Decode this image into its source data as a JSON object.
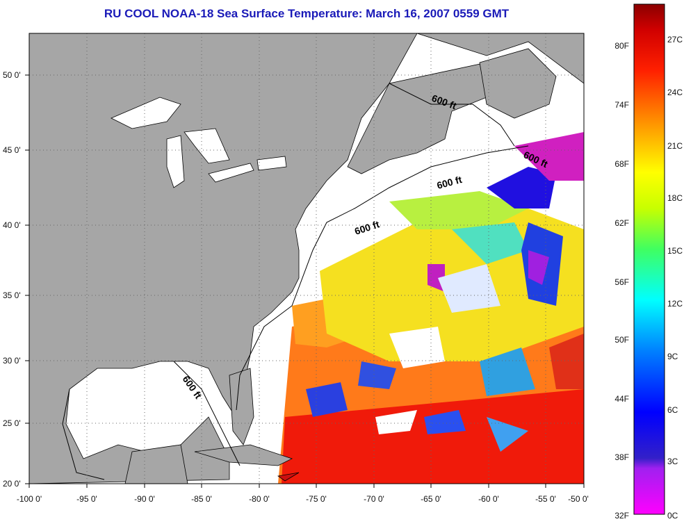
{
  "title": "RU COOL  NOAA-18  Sea Surface Temperature:  March 16, 2007 0559 GMT",
  "axes": {
    "x_ticks": [
      "-100 0'",
      "-95 0'",
      "-90 0'",
      "-85 0'",
      "-80 0'",
      "-75 0'",
      "-70 0'",
      "-65 0'",
      "-60 0'",
      "-55 0'",
      "-50 0'"
    ],
    "y_ticks": [
      "50 0'",
      "45 0'",
      "40 0'",
      "35 0'",
      "30 0'",
      "25 0'",
      "20 0'"
    ]
  },
  "contour_labels": [
    "600 ft",
    "600 ft",
    "600 ft",
    "600 ft"
  ],
  "colorbar": {
    "fahrenheit": [
      "80F",
      "74F",
      "68F",
      "62F",
      "56F",
      "50F",
      "44F",
      "38F",
      "32F"
    ],
    "celsius": [
      "27C",
      "24C",
      "21C",
      "18C",
      "15C",
      "12C",
      "9C",
      "6C",
      "3C",
      "0C"
    ]
  },
  "colors": {
    "land": "#a6a6a6",
    "ocean_no_data": "#ffffff",
    "title": "#1a1ab8",
    "warm": "#e8160a",
    "cold": "#1a10e0"
  }
}
